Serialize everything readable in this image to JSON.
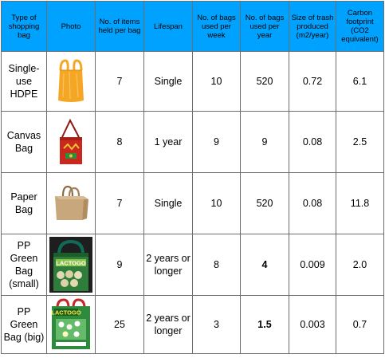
{
  "headers": {
    "type": "Type of shopping bag",
    "photo": "Photo",
    "items": "No. of items held per bag",
    "lifespan": "Lifespan",
    "per_week": "No. of bags used per week",
    "per_year": "No. of bags used per year",
    "trash": "Size of trash produced (m2/year)",
    "carbon": "Carbon footprint (CO2 equivalent)"
  },
  "rows": [
    {
      "type": "Single-use HDPE",
      "photo_icon": "orange-plastic-bag-icon",
      "items": "7",
      "lifespan": "Single",
      "per_week": "10",
      "per_year": "520",
      "trash": "0.72",
      "carbon": "6.1"
    },
    {
      "type": "Canvas Bag",
      "photo_icon": "red-canvas-bag-icon",
      "items": "8",
      "lifespan": "1 year",
      "per_week": "9",
      "per_year": "9",
      "trash": "0.08",
      "carbon": "2.5"
    },
    {
      "type": "Paper Bag",
      "photo_icon": "brown-paper-bag-icon",
      "items": "7",
      "lifespan": "Single",
      "per_week": "10",
      "per_year": "520",
      "trash": "0.08",
      "carbon": "11.8"
    },
    {
      "type": "PP Green Bag (small)",
      "photo_icon": "small-green-bag-icon",
      "bag_text": "LACTOGO",
      "items": "9",
      "lifespan": "2 years or longer",
      "per_week": "8",
      "per_year": "4",
      "trash": "0.009",
      "carbon": "2.0"
    },
    {
      "type": "PP Green Bag (big)",
      "photo_icon": "big-green-bag-icon",
      "bag_text": "LACTOGO",
      "items": "25",
      "lifespan": "2 years or longer",
      "per_week": "3",
      "per_year": "1.5",
      "trash": "0.003",
      "carbon": "0.7"
    }
  ],
  "colors": {
    "header_bg": "#00a2ff",
    "border": "#6e6e6e",
    "hdpe_bag": "#f5a623",
    "canvas_bag": "#c8281e",
    "paper_bag": "#c9a77c",
    "pp_bag": "#2e7d3a"
  }
}
